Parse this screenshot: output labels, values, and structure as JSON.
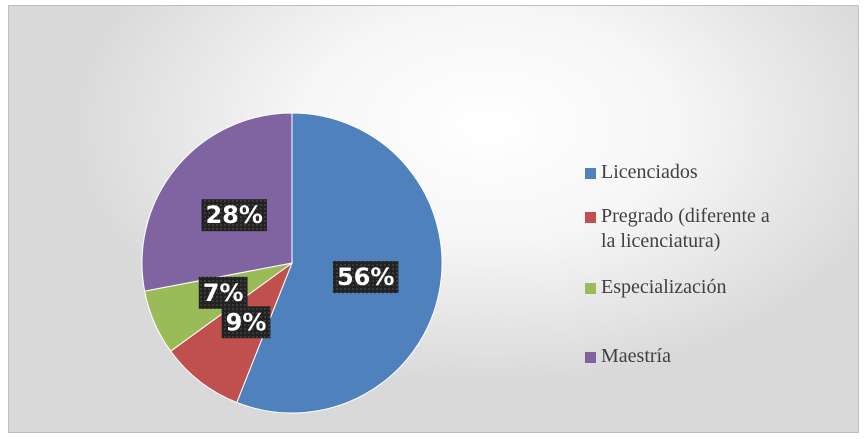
{
  "chart_data": {
    "type": "pie",
    "categories": [
      "Licenciados",
      "Pregrado (diferente a la licenciatura)",
      "Especialización",
      "Maestría"
    ],
    "values": [
      56,
      9,
      7,
      28
    ],
    "value_labels": [
      "56%",
      "9%",
      "7%",
      "28%"
    ],
    "colors": [
      "#4f81bd",
      "#c0504d",
      "#9bbb59",
      "#8064a2"
    ],
    "legend": "right"
  }
}
